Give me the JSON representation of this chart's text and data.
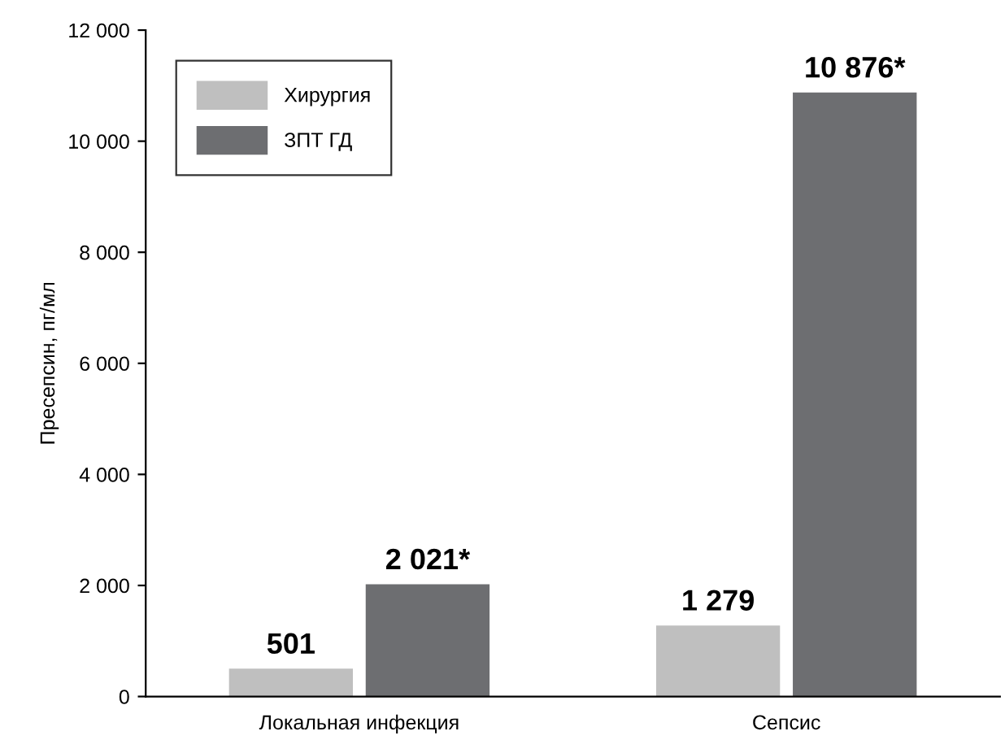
{
  "chart_data": {
    "type": "bar",
    "ylabel": "Пресепсин, пг/мл",
    "categories": [
      "Локальная инфекция",
      "Сепсис"
    ],
    "series": [
      {
        "name": "Хирургия",
        "color": "#bfbfbf",
        "values": [
          501,
          1279
        ],
        "value_labels": [
          "501",
          "1 279"
        ]
      },
      {
        "name": "ЗПТ ГД",
        "color": "#6d6e71",
        "values": [
          2021,
          10876
        ],
        "value_labels": [
          "2 021*",
          "10 876*"
        ]
      }
    ],
    "ylim": [
      0,
      12000
    ],
    "yticks": [
      0,
      {
        "value": 2000,
        "label": "2 000"
      },
      {
        "value": 4000,
        "label": "4 000"
      },
      {
        "value": 6000,
        "label": "6 000"
      },
      {
        "value": 8000,
        "label": "8 000"
      },
      {
        "value": 10000,
        "label": "10 000"
      },
      {
        "value": 12000,
        "label": "12 000"
      }
    ],
    "grid": false,
    "legend": "top left"
  }
}
